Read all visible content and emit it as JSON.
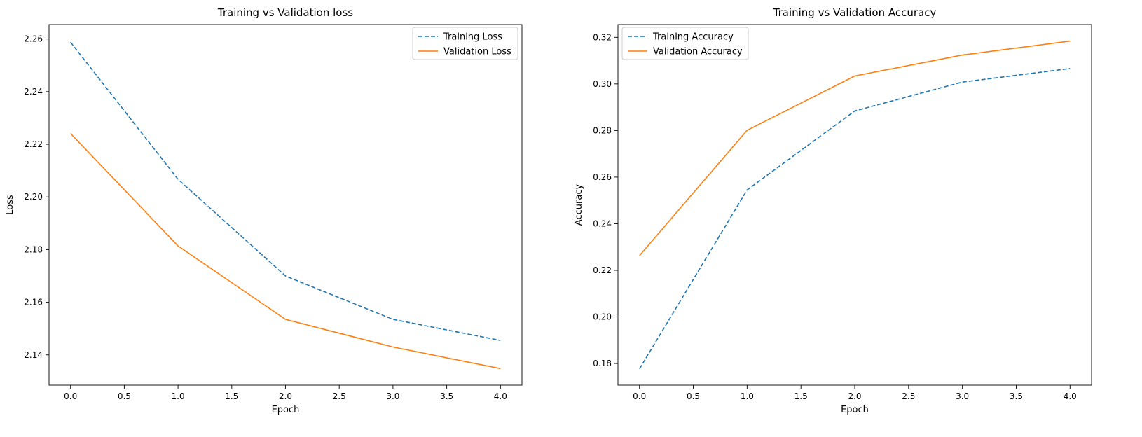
{
  "chart_data": [
    {
      "type": "line",
      "title": "Training vs Validation loss",
      "xlabel": "Epoch",
      "ylabel": "Loss",
      "xlim": [
        -0.2,
        4.2
      ],
      "ylim": [
        2.1285,
        2.2655
      ],
      "xticks": [
        0.0,
        0.5,
        1.0,
        1.5,
        2.0,
        2.5,
        3.0,
        3.5,
        4.0
      ],
      "xtick_labels": [
        "0.0",
        "0.5",
        "1.0",
        "1.5",
        "2.0",
        "2.5",
        "3.0",
        "3.5",
        "4.0"
      ],
      "yticks": [
        2.14,
        2.16,
        2.18,
        2.2,
        2.22,
        2.24,
        2.26
      ],
      "ytick_labels": [
        "2.14",
        "2.16",
        "2.18",
        "2.20",
        "2.22",
        "2.24",
        "2.26"
      ],
      "grid": false,
      "legend_position": "top-right",
      "x": [
        0,
        1,
        2,
        3,
        4
      ],
      "series": [
        {
          "name": "Training Loss",
          "values": [
            2.2588,
            2.2067,
            2.17,
            2.1535,
            2.1455
          ],
          "color": "#1f77b4",
          "style": "dashed"
        },
        {
          "name": "Validation Loss",
          "values": [
            2.2241,
            2.1814,
            2.1535,
            2.143,
            2.1348
          ],
          "color": "#ff7f0e",
          "style": "solid"
        }
      ]
    },
    {
      "type": "line",
      "title": "Training vs Validation Accuracy",
      "xlabel": "Epoch",
      "ylabel": "Accuracy",
      "xlim": [
        -0.2,
        4.2
      ],
      "ylim": [
        0.1707,
        0.3255
      ],
      "xticks": [
        0.0,
        0.5,
        1.0,
        1.5,
        2.0,
        2.5,
        3.0,
        3.5,
        4.0
      ],
      "xtick_labels": [
        "0.0",
        "0.5",
        "1.0",
        "1.5",
        "2.0",
        "2.5",
        "3.0",
        "3.5",
        "4.0"
      ],
      "yticks": [
        0.18,
        0.2,
        0.22,
        0.24,
        0.26,
        0.28,
        0.3,
        0.32
      ],
      "ytick_labels": [
        "0.18",
        "0.20",
        "0.22",
        "0.24",
        "0.26",
        "0.28",
        "0.30",
        "0.32"
      ],
      "grid": false,
      "legend_position": "top-left",
      "x": [
        0,
        1,
        2,
        3,
        4
      ],
      "series": [
        {
          "name": "Training Accuracy",
          "values": [
            0.1777,
            0.2545,
            0.2884,
            0.3008,
            0.3066
          ],
          "color": "#1f77b4",
          "style": "dashed"
        },
        {
          "name": "Validation Accuracy",
          "values": [
            0.2263,
            0.2801,
            0.3034,
            0.3124,
            0.3184
          ],
          "color": "#ff7f0e",
          "style": "solid"
        }
      ]
    }
  ]
}
